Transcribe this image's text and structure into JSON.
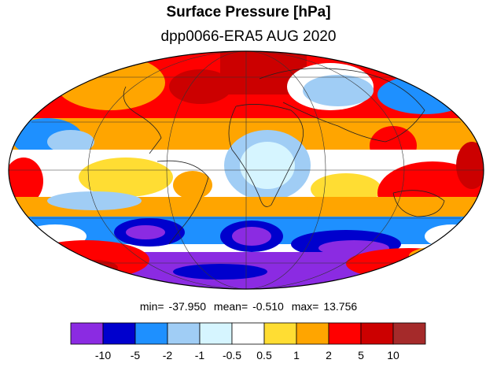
{
  "header": {
    "title": "Surface Pressure [hPa]",
    "subtitle": "dpp0066-ERA5  AUG 2020"
  },
  "stats": {
    "min_label": "min=",
    "min": "-37.950",
    "mean_label": "mean=",
    "mean": "-0.510",
    "max_label": "max=",
    "max": "13.756"
  },
  "colorbar": {
    "colors": [
      "#8b2be2",
      "#0000cd",
      "#1e90ff",
      "#a0cdf5",
      "#d6f5ff",
      "#ffffff",
      "#ffdd33",
      "#ffa500",
      "#ff0000",
      "#cc0000",
      "#a52a2a"
    ],
    "tick_labels": [
      "-10",
      "-5",
      "-2",
      "-1",
      "-0.5",
      "0.5",
      "1",
      "2",
      "5",
      "10"
    ]
  }
}
